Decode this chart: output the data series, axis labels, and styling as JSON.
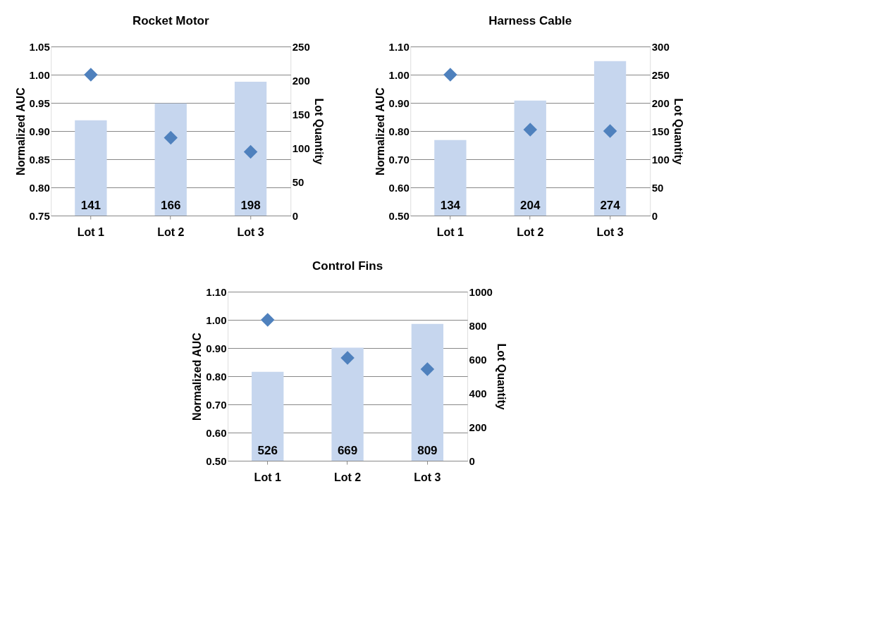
{
  "chart_data": [
    {
      "type": "bar",
      "title": "Rocket Motor",
      "categories": [
        "Lot 1",
        "Lot 2",
        "Lot 3"
      ],
      "ylabel": "Normalized AUC",
      "y2label": "Lot Quantity",
      "grid": "y",
      "ylim": [
        0.75,
        1.05
      ],
      "yticks": [
        {
          "value": 0.75,
          "label": "0.75"
        },
        {
          "value": 0.8,
          "label": "0.80"
        },
        {
          "value": 0.85,
          "label": "0.85"
        },
        {
          "value": 0.9,
          "label": "0.90"
        },
        {
          "value": 0.95,
          "label": "0.95"
        },
        {
          "value": 1.0,
          "label": "1.00"
        },
        {
          "value": 1.05,
          "label": "1.05"
        }
      ],
      "y2lim": [
        0,
        250
      ],
      "y2ticks": [
        0,
        50,
        100,
        150,
        200,
        250
      ],
      "series": [
        {
          "axis": "y2",
          "color": "#c6d6ee",
          "values": [
            141,
            166,
            198
          ],
          "value_labels": [
            "141",
            "166",
            "198"
          ]
        },
        {
          "type": "scatter",
          "marker": "diamond",
          "color": "#4f81bd",
          "values": [
            1.0,
            0.888,
            0.863
          ]
        }
      ]
    },
    {
      "type": "bar",
      "title": "Harness Cable",
      "categories": [
        "Lot 1",
        "Lot 2",
        "Lot 3"
      ],
      "ylabel": "Normalized AUC",
      "y2label": "Lot Quantity",
      "grid": "y",
      "ylim": [
        0.5,
        1.1
      ],
      "yticks": [
        {
          "value": 0.5,
          "label": "0.50"
        },
        {
          "value": 0.6,
          "label": "0.60"
        },
        {
          "value": 0.7,
          "label": "0.70"
        },
        {
          "value": 0.8,
          "label": "0.80"
        },
        {
          "value": 0.9,
          "label": "0.90"
        },
        {
          "value": 1.0,
          "label": "1.00"
        },
        {
          "value": 1.1,
          "label": "1.10"
        }
      ],
      "y2lim": [
        0,
        300
      ],
      "y2ticks": [
        0,
        50,
        100,
        150,
        200,
        250,
        300
      ],
      "series": [
        {
          "axis": "y2",
          "color": "#c6d6ee",
          "values": [
            134,
            204,
            274
          ],
          "value_labels": [
            "134",
            "204",
            "274"
          ]
        },
        {
          "type": "scatter",
          "marker": "diamond",
          "color": "#4f81bd",
          "values": [
            1.0,
            0.805,
            0.8
          ]
        }
      ]
    },
    {
      "type": "bar",
      "title": "Control Fins",
      "categories": [
        "Lot 1",
        "Lot 2",
        "Lot 3"
      ],
      "ylabel": "Normalized AUC",
      "y2label": "Lot Quantity",
      "grid": "y",
      "ylim": [
        0.5,
        1.1
      ],
      "yticks": [
        {
          "value": 0.5,
          "label": "0.50"
        },
        {
          "value": 0.6,
          "label": "0.60"
        },
        {
          "value": 0.7,
          "label": "0.70"
        },
        {
          "value": 0.8,
          "label": "0.80"
        },
        {
          "value": 0.9,
          "label": "0.90"
        },
        {
          "value": 1.0,
          "label": "1.00"
        },
        {
          "value": 1.1,
          "label": "1.10"
        }
      ],
      "y2lim": [
        0,
        1000
      ],
      "y2ticks": [
        0,
        200,
        400,
        600,
        800,
        1000
      ],
      "series": [
        {
          "axis": "y2",
          "color": "#c6d6ee",
          "values": [
            526,
            669,
            809
          ],
          "value_labels": [
            "526",
            "669",
            "809"
          ]
        },
        {
          "type": "scatter",
          "marker": "diamond",
          "color": "#4f81bd",
          "values": [
            1.0,
            0.865,
            0.825
          ]
        }
      ]
    }
  ]
}
